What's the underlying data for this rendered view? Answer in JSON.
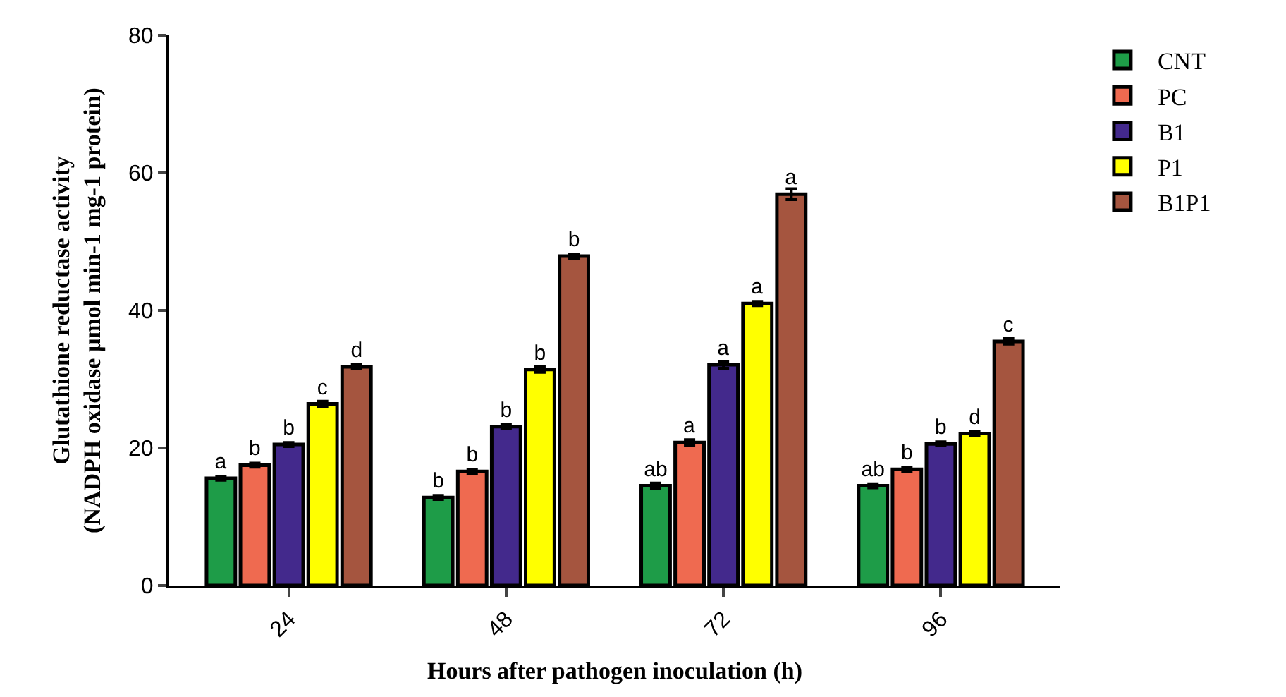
{
  "chart_data": {
    "type": "bar",
    "xlabel": "Hours after pathogen inoculation (h)",
    "ylabel": "Glutathione reductase activity\n(NADPH oxidase µmol min-1 mg-1 protein)",
    "categories": [
      "24",
      "48",
      "72",
      "96"
    ],
    "ylim": [
      0,
      80
    ],
    "yticks": [
      0,
      20,
      40,
      60,
      80
    ],
    "legend": "right",
    "series": [
      {
        "name": "CNT",
        "color": "#1e9c48",
        "values": [
          15.6,
          12.8,
          14.5,
          14.5
        ],
        "errors": [
          0.3,
          0.3,
          0.4,
          0.3
        ],
        "value_labels": [
          "a",
          "b",
          "ab",
          "ab"
        ]
      },
      {
        "name": "PC",
        "color": "#ef6a50",
        "values": [
          17.5,
          16.6,
          20.8,
          16.9
        ],
        "errors": [
          0.3,
          0.3,
          0.4,
          0.3
        ],
        "value_labels": [
          "b",
          "b",
          "a",
          "b"
        ]
      },
      {
        "name": "B1",
        "color": "#43298c",
        "values": [
          20.5,
          23.1,
          32.1,
          20.6
        ],
        "errors": [
          0.3,
          0.3,
          0.5,
          0.3
        ],
        "value_labels": [
          "b",
          "b",
          "a",
          "b"
        ]
      },
      {
        "name": "P1",
        "color": "#ffff00",
        "values": [
          26.4,
          31.4,
          41.0,
          22.1
        ],
        "errors": [
          0.4,
          0.4,
          0.3,
          0.3
        ],
        "value_labels": [
          "c",
          "b",
          "a",
          "d"
        ]
      },
      {
        "name": "B1P1",
        "color": "#a5553f",
        "values": [
          31.8,
          47.9,
          56.9,
          35.5
        ],
        "errors": [
          0.3,
          0.3,
          0.8,
          0.4
        ],
        "value_labels": [
          "d",
          "b",
          "a",
          "c"
        ]
      }
    ]
  }
}
